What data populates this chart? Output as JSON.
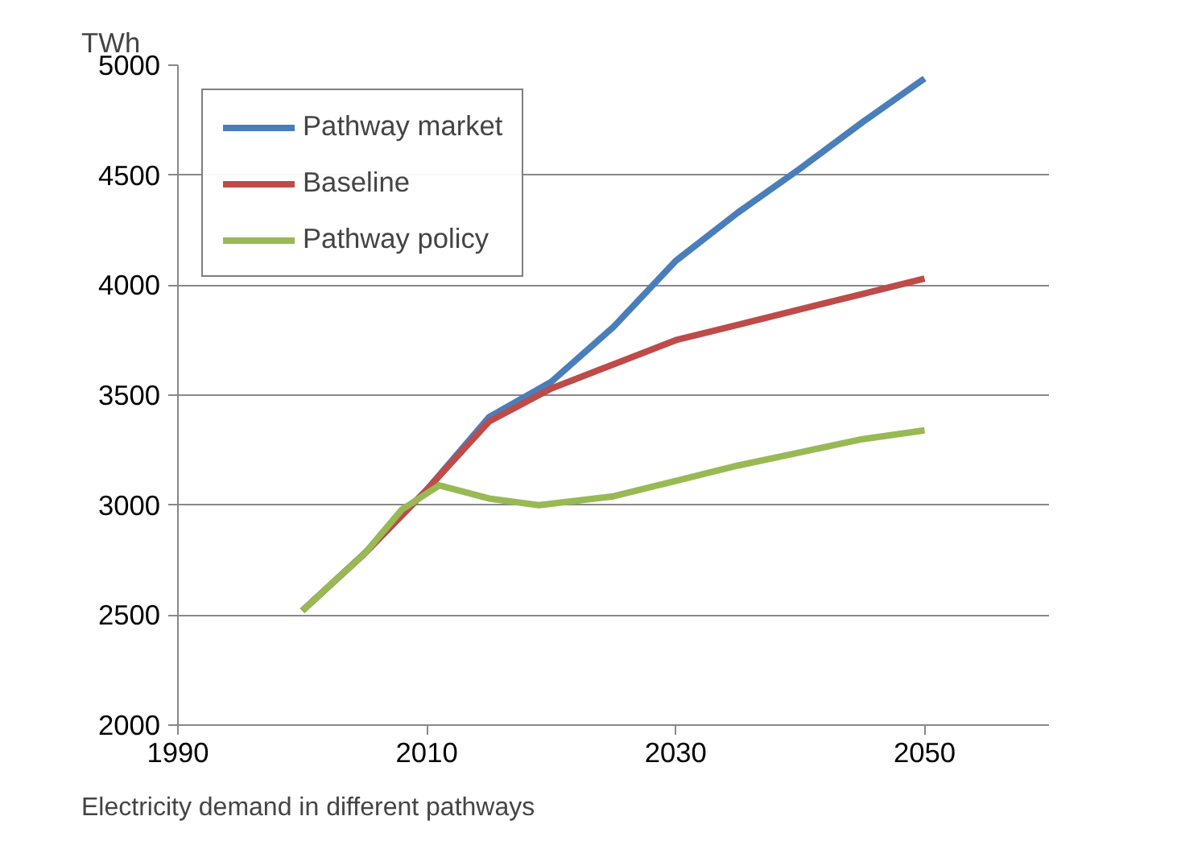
{
  "chart_data": {
    "type": "line",
    "ylabel": "TWh",
    "annotations": [
      "Electricity demand in different pathways"
    ],
    "xlim": [
      1990,
      2060
    ],
    "xticks": [
      1990,
      2010,
      2030,
      2050
    ],
    "ylim": [
      2000,
      5000
    ],
    "yticks": [
      2000,
      2500,
      3000,
      3500,
      4000,
      4500,
      5000
    ],
    "grid": "y",
    "legend": "top left",
    "marker": "none",
    "line_style": "solid",
    "series": [
      {
        "name": "Pathway market",
        "color": "#4a7ebb",
        "x": [
          2000,
          2005,
          2010,
          2015,
          2020,
          2025,
          2030,
          2035,
          2040,
          2045,
          2050
        ],
        "values": [
          2520,
          2780,
          3070,
          3400,
          3560,
          3810,
          4110,
          4330,
          4530,
          4740,
          4940
        ]
      },
      {
        "name": "Baseline",
        "color": "#be4b48",
        "x": [
          2000,
          2005,
          2010,
          2015,
          2020,
          2025,
          2030,
          2035,
          2040,
          2045,
          2050
        ],
        "values": [
          2520,
          2780,
          3070,
          3380,
          3530,
          3640,
          3750,
          3820,
          3890,
          3960,
          4030
        ]
      },
      {
        "name": "Pathway policy",
        "color": "#98b954",
        "x": [
          2000,
          2005,
          2008,
          2011,
          2015,
          2019,
          2025,
          2030,
          2035,
          2040,
          2045,
          2050
        ],
        "values": [
          2520,
          2780,
          2980,
          3090,
          3030,
          3000,
          3040,
          3110,
          3180,
          3240,
          3300,
          3340
        ]
      }
    ]
  }
}
